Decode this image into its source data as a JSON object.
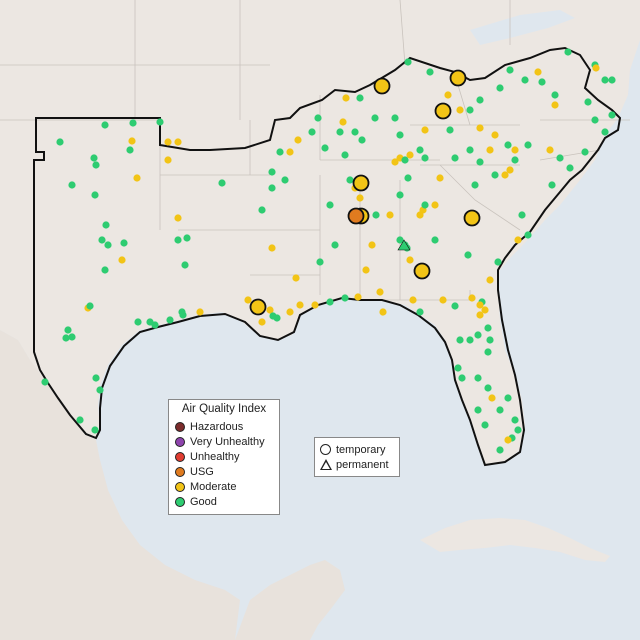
{
  "map": {
    "colors": {
      "water": "#dfe7ee",
      "land": "#ece7e2",
      "state_border": "#c9c3bd",
      "region_border": "#111111"
    }
  },
  "legend": {
    "title": "Air Quality Index",
    "items": [
      {
        "label": "Hazardous",
        "color": "#7b2c2c"
      },
      {
        "label": "Very Unhealthy",
        "color": "#8e44ad"
      },
      {
        "label": "Unhealthy",
        "color": "#e03c31"
      },
      {
        "label": "USG",
        "color": "#e07b1f"
      },
      {
        "label": "Moderate",
        "color": "#f2c416"
      },
      {
        "label": "Good",
        "color": "#2ecc71"
      }
    ]
  },
  "shape_legend": {
    "items": [
      {
        "label": "temporary",
        "shape": "circle"
      },
      {
        "label": "permanent",
        "shape": "triangle"
      }
    ]
  }
}
